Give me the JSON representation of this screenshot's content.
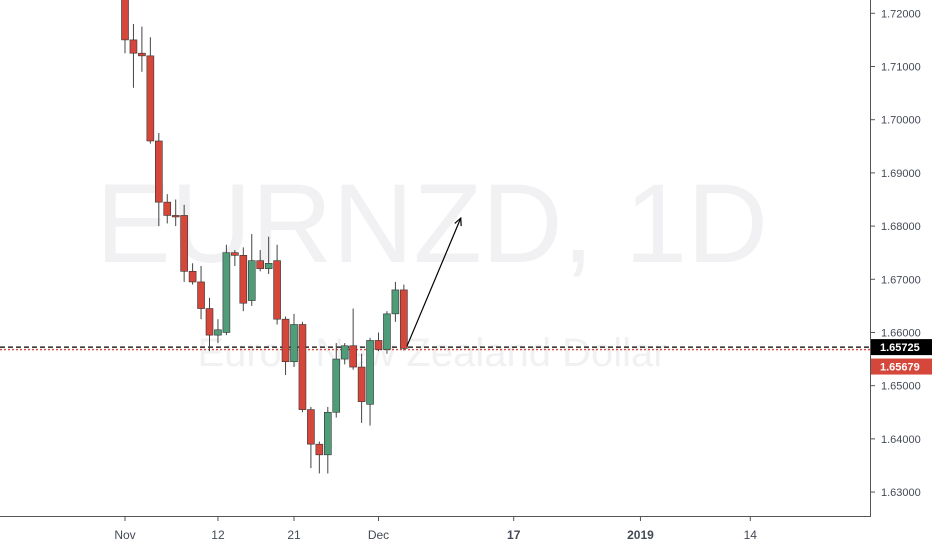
{
  "watermark": {
    "symbol": "EURNZD, 1D",
    "description": "Euro / New Zealand Dollar"
  },
  "colors": {
    "up": "#4f9c78",
    "down": "#d4473a",
    "wick": "#444444",
    "axis": "#555555",
    "line_black": "#000000",
    "line_red": "#d4473a",
    "badge_black": "#000000",
    "badge_red": "#d4473a"
  },
  "price_axis": {
    "ticks": [
      "1.72000",
      "1.71000",
      "1.70000",
      "1.69000",
      "1.68000",
      "1.67000",
      "1.66000",
      "1.65000",
      "1.64000",
      "1.63000"
    ],
    "current_badge": "1.65725",
    "second_badge": "1.65679"
  },
  "date_axis": {
    "labels": [
      {
        "text": "Nov",
        "day": 1,
        "bold": false
      },
      {
        "text": "12",
        "day": 12,
        "bold": false
      },
      {
        "text": "21",
        "day": 21,
        "bold": false
      },
      {
        "text": "Dec",
        "day": 31,
        "bold": false
      },
      {
        "text": "17",
        "day": 47,
        "bold": true
      },
      {
        "text": "2019",
        "day": 62,
        "bold": true
      },
      {
        "text": "14",
        "day": 75,
        "bold": false
      }
    ]
  },
  "chart_data": {
    "type": "candlestick",
    "symbol": "EURNZD",
    "interval": "1D",
    "ylim": [
      1.6255,
      1.7225
    ],
    "candles": [
      {
        "day": 1,
        "open": 1.723,
        "high": 1.724,
        "low": 1.7125,
        "close": 1.715
      },
      {
        "day": 2,
        "open": 1.715,
        "high": 1.718,
        "low": 1.706,
        "close": 1.7125
      },
      {
        "day": 3,
        "open": 1.7125,
        "high": 1.7175,
        "low": 1.709,
        "close": 1.712
      },
      {
        "day": 4,
        "open": 1.712,
        "high": 1.7155,
        "low": 1.6955,
        "close": 1.696
      },
      {
        "day": 5,
        "open": 1.696,
        "high": 1.6975,
        "low": 1.68,
        "close": 1.6845
      },
      {
        "day": 6,
        "open": 1.6845,
        "high": 1.686,
        "low": 1.6805,
        "close": 1.682
      },
      {
        "day": 7,
        "open": 1.682,
        "high": 1.685,
        "low": 1.68,
        "close": 1.6818
      },
      {
        "day": 8,
        "open": 1.682,
        "high": 1.684,
        "low": 1.6695,
        "close": 1.6715
      },
      {
        "day": 9,
        "open": 1.6715,
        "high": 1.673,
        "low": 1.669,
        "close": 1.6695
      },
      {
        "day": 10,
        "open": 1.6695,
        "high": 1.6725,
        "low": 1.6625,
        "close": 1.6645
      },
      {
        "day": 11,
        "open": 1.6645,
        "high": 1.6665,
        "low": 1.6565,
        "close": 1.6595
      },
      {
        "day": 12,
        "open": 1.6595,
        "high": 1.6625,
        "low": 1.658,
        "close": 1.6605
      },
      {
        "day": 13,
        "open": 1.66,
        "high": 1.6765,
        "low": 1.6595,
        "close": 1.675
      },
      {
        "day": 14,
        "open": 1.675,
        "high": 1.6755,
        "low": 1.6725,
        "close": 1.6745
      },
      {
        "day": 15,
        "open": 1.6745,
        "high": 1.676,
        "low": 1.664,
        "close": 1.6655
      },
      {
        "day": 16,
        "open": 1.666,
        "high": 1.6785,
        "low": 1.665,
        "close": 1.6735
      },
      {
        "day": 17,
        "open": 1.6735,
        "high": 1.6755,
        "low": 1.6715,
        "close": 1.672
      },
      {
        "day": 18,
        "open": 1.672,
        "high": 1.678,
        "low": 1.671,
        "close": 1.673
      },
      {
        "day": 19,
        "open": 1.6735,
        "high": 1.6765,
        "low": 1.6615,
        "close": 1.6625
      },
      {
        "day": 20,
        "open": 1.6625,
        "high": 1.663,
        "low": 1.652,
        "close": 1.6545
      },
      {
        "day": 21,
        "open": 1.6545,
        "high": 1.6635,
        "low": 1.6535,
        "close": 1.6615
      },
      {
        "day": 22,
        "open": 1.6615,
        "high": 1.662,
        "low": 1.645,
        "close": 1.6455
      },
      {
        "day": 23,
        "open": 1.6455,
        "high": 1.646,
        "low": 1.6345,
        "close": 1.639
      },
      {
        "day": 24,
        "open": 1.639,
        "high": 1.6395,
        "low": 1.6335,
        "close": 1.637
      },
      {
        "day": 25,
        "open": 1.637,
        "high": 1.646,
        "low": 1.6335,
        "close": 1.645
      },
      {
        "day": 26,
        "open": 1.645,
        "high": 1.658,
        "low": 1.644,
        "close": 1.655
      },
      {
        "day": 27,
        "open": 1.655,
        "high": 1.658,
        "low": 1.654,
        "close": 1.6575
      },
      {
        "day": 28,
        "open": 1.6575,
        "high": 1.6645,
        "low": 1.653,
        "close": 1.6535
      },
      {
        "day": 29,
        "open": 1.6535,
        "high": 1.656,
        "low": 1.643,
        "close": 1.647
      },
      {
        "day": 30,
        "open": 1.6465,
        "high": 1.659,
        "low": 1.6425,
        "close": 1.6585
      },
      {
        "day": 31,
        "open": 1.6585,
        "high": 1.66,
        "low": 1.6565,
        "close": 1.6568
      },
      {
        "day": 32,
        "open": 1.6568,
        "high": 1.664,
        "low": 1.656,
        "close": 1.6635
      },
      {
        "day": 33,
        "open": 1.6635,
        "high": 1.6695,
        "low": 1.662,
        "close": 1.668
      },
      {
        "day": 34,
        "open": 1.668,
        "high": 1.669,
        "low": 1.6566,
        "close": 1.657
      }
    ],
    "horizontal_lines": [
      {
        "price": 1.65725,
        "style": "dashed",
        "color": "black"
      },
      {
        "price": 1.65679,
        "style": "dotted",
        "color": "red"
      }
    ],
    "arrow": {
      "from": {
        "day": 34,
        "price": 1.657
      },
      "to": {
        "day": 36,
        "price": 1.6815
      }
    }
  }
}
